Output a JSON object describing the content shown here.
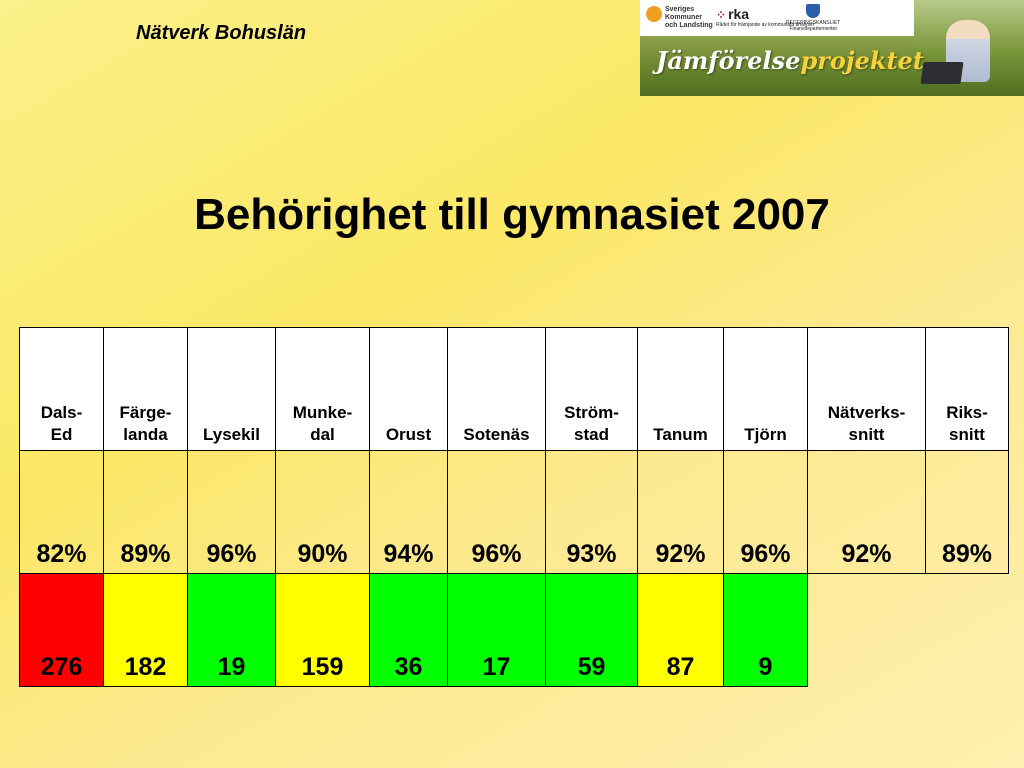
{
  "header": {
    "title": "Nätverk Bohuslän"
  },
  "banner": {
    "logo1_lines": [
      "Sveriges",
      "Kommuner",
      "och Landsting"
    ],
    "logo2": "rka",
    "logo2_sub": "Rådet för främjande av kommunala analyser",
    "logo3_lines": [
      "REGERINGSKANSLIET",
      "Finansdepartementet"
    ],
    "project_part1": "Jämförelse",
    "project_part2": "projektet"
  },
  "page_title": "Behörighet till gymnasiet 2007",
  "table": {
    "columns": [
      {
        "l1": "Dals-",
        "l2": "Ed"
      },
      {
        "l1": "Färge-",
        "l2": "landa"
      },
      {
        "l1": "",
        "l2": "Lysekil"
      },
      {
        "l1": "Munke-",
        "l2": "dal"
      },
      {
        "l1": "",
        "l2": "Orust"
      },
      {
        "l1": "",
        "l2": "Sotenäs"
      },
      {
        "l1": "Ström-",
        "l2": "stad"
      },
      {
        "l1": "",
        "l2": "Tanum"
      },
      {
        "l1": "",
        "l2": "Tjörn"
      },
      {
        "l1": "Nätverks-",
        "l2": "snitt"
      },
      {
        "l1": "Riks-",
        "l2": "snitt"
      }
    ],
    "percentages": [
      "82%",
      "89%",
      "96%",
      "90%",
      "94%",
      "96%",
      "93%",
      "92%",
      "96%",
      "92%",
      "89%"
    ],
    "counts": [
      "276",
      "182",
      "19",
      "159",
      "36",
      "17",
      "59",
      "87",
      "9"
    ],
    "count_colors": [
      "red",
      "yellow",
      "green",
      "yellow",
      "green",
      "green",
      "green",
      "yellow",
      "green"
    ]
  },
  "colors": {
    "red": "#ff0000",
    "yellow": "#ffff00",
    "green": "#00ff00"
  }
}
